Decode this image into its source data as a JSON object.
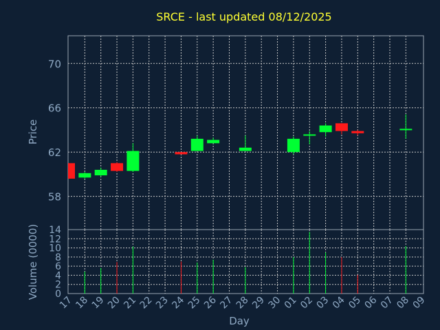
{
  "chart_data": {
    "type": "candlestick",
    "title": "SRCE - last updated 08/12/2025",
    "xlabel": "Day",
    "ylabel_price": "Price",
    "ylabel_volume": "Volume (0000)",
    "price_ylim": [
      55,
      72.5
    ],
    "price_ticks": [
      58,
      62,
      66,
      70
    ],
    "volume_ylim": [
      0,
      14
    ],
    "volume_ticks": [
      0,
      2,
      4,
      6,
      8,
      10,
      12,
      14
    ],
    "x_ticks": [
      "17",
      "18",
      "19",
      "20",
      "21",
      "22",
      "23",
      "24",
      "25",
      "26",
      "27",
      "28",
      "29",
      "30",
      "01",
      "02",
      "03",
      "04",
      "05",
      "06",
      "07",
      "08",
      "09"
    ],
    "grid": true,
    "colors": {
      "up": "#00ff33",
      "down": "#ff1a1a",
      "background": "#0f1f33"
    },
    "candles": [
      {
        "day": "17",
        "open": 61.0,
        "high": 61.0,
        "low": 59.6,
        "close": 59.6,
        "volume": 0
      },
      {
        "day": "18",
        "open": 59.7,
        "high": 60.2,
        "low": 59.6,
        "close": 60.1,
        "volume": 4.8
      },
      {
        "day": "19",
        "open": 59.9,
        "high": 60.6,
        "low": 59.8,
        "close": 60.4,
        "volume": 5.6
      },
      {
        "day": "20",
        "open": 61.0,
        "high": 61.1,
        "low": 60.2,
        "close": 60.3,
        "volume": 6.9
      },
      {
        "day": "21",
        "open": 60.3,
        "high": 62.8,
        "low": 60.2,
        "close": 62.1,
        "volume": 10.3
      },
      {
        "day": "24",
        "open": 62.0,
        "high": 62.0,
        "low": 61.8,
        "close": 61.8,
        "volume": 7.0
      },
      {
        "day": "25",
        "open": 62.1,
        "high": 63.5,
        "low": 62.1,
        "close": 63.2,
        "volume": 6.8
      },
      {
        "day": "26",
        "open": 62.8,
        "high": 63.3,
        "low": 62.8,
        "close": 63.1,
        "volume": 7.4
      },
      {
        "day": "28",
        "open": 62.1,
        "high": 63.5,
        "low": 62.1,
        "close": 62.4,
        "volume": 5.8
      },
      {
        "day": "01",
        "open": 62.0,
        "high": 63.4,
        "low": 61.8,
        "close": 63.2,
        "volume": 8.0
      },
      {
        "day": "02",
        "open": 63.5,
        "high": 63.9,
        "low": 62.7,
        "close": 63.6,
        "volume": 13.5
      },
      {
        "day": "03",
        "open": 63.8,
        "high": 64.6,
        "low": 63.4,
        "close": 64.4,
        "volume": 9.0
      },
      {
        "day": "04",
        "open": 64.6,
        "high": 64.6,
        "low": 63.6,
        "close": 63.9,
        "volume": 8.0
      },
      {
        "day": "05",
        "open": 63.9,
        "high": 64.0,
        "low": 63.5,
        "close": 63.7,
        "volume": 4.1
      },
      {
        "day": "08",
        "open": 64.0,
        "high": 65.4,
        "low": 63.2,
        "close": 64.1,
        "volume": 10.4
      }
    ]
  }
}
